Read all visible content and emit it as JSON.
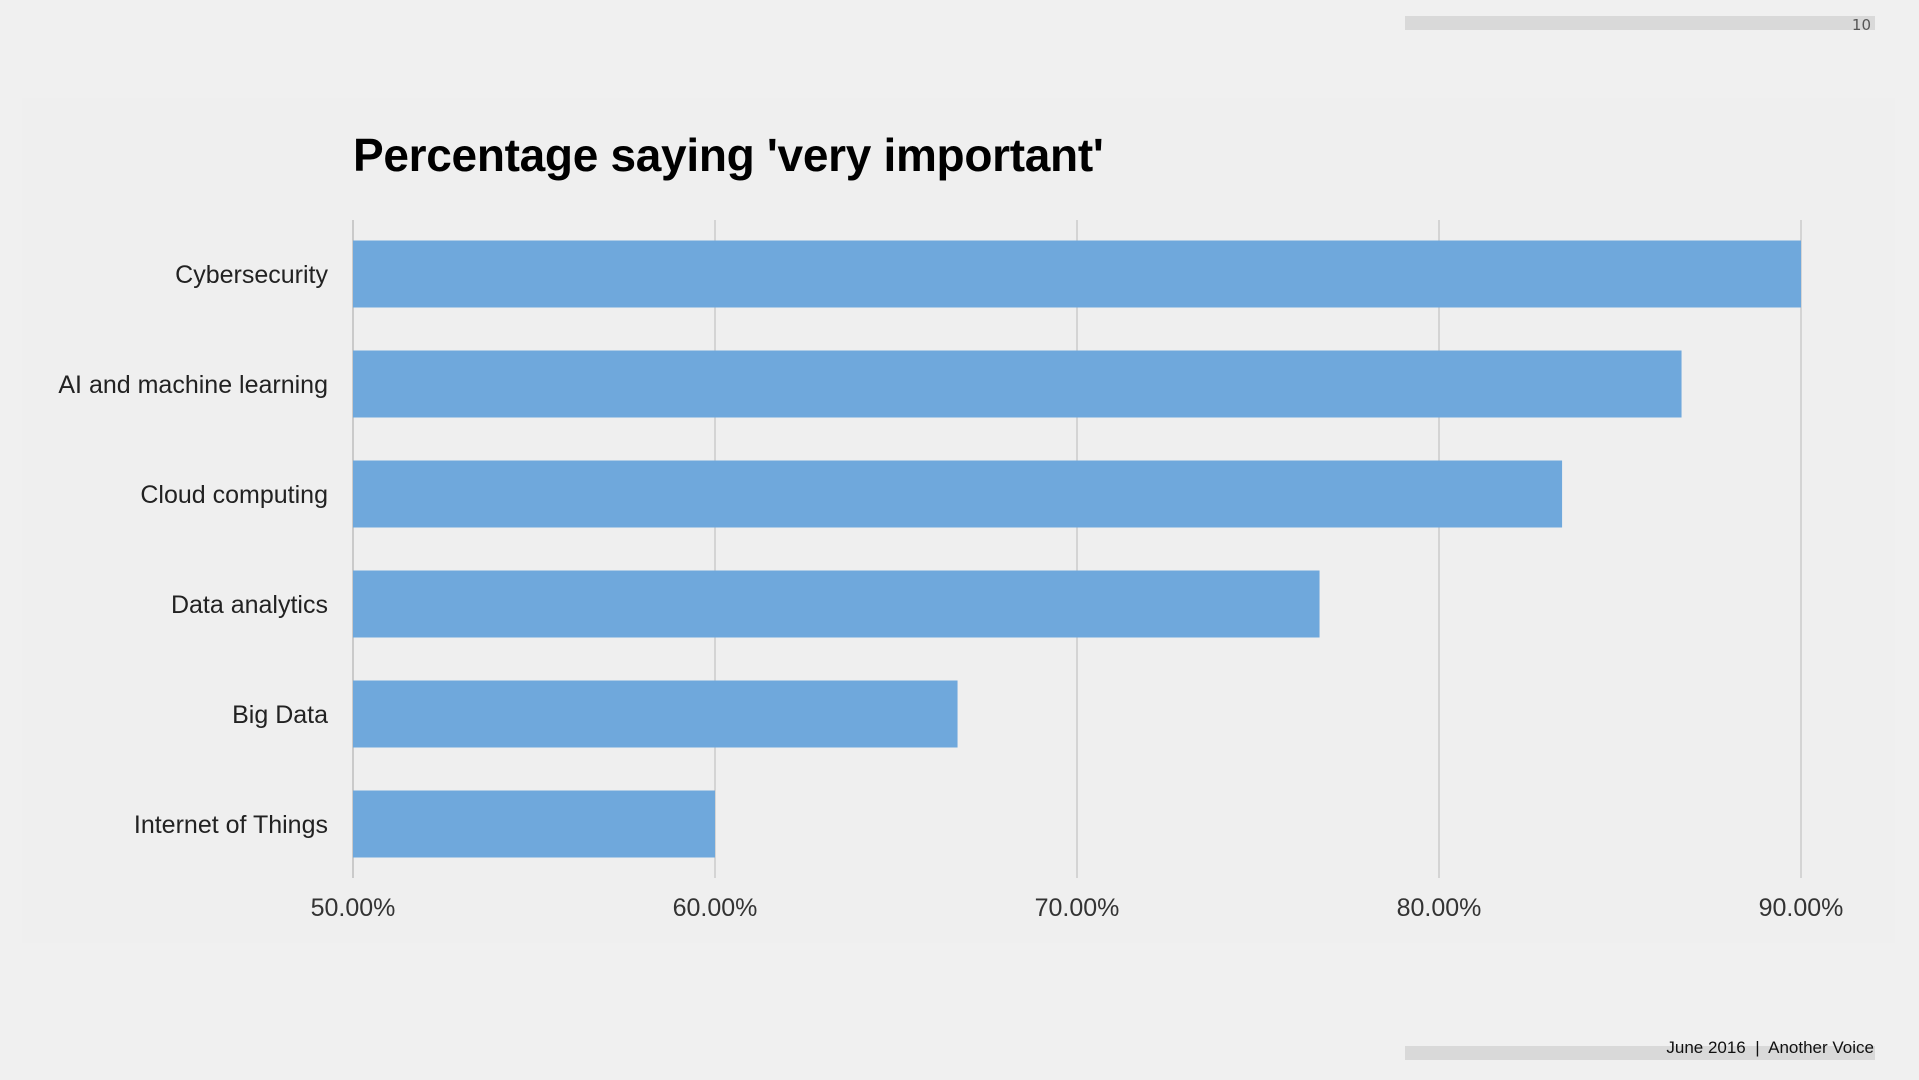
{
  "page": {
    "page_number": "10",
    "footer_text": "June 2016  |  Another Voice"
  },
  "colors": {
    "bar": "#6fa8dc",
    "grid": "#cccccc",
    "background": "#f0f0f0"
  },
  "chart_data": {
    "type": "bar",
    "orientation": "horizontal",
    "title": "Percentage saying 'very important'",
    "xlabel": "",
    "ylabel": "",
    "categories": [
      "Cybersecurity",
      "AI and machine learning",
      "Cloud computing",
      "Data analytics",
      "Big Data",
      "Internet of Things"
    ],
    "values": [
      90.0,
      86.7,
      83.4,
      76.7,
      66.7,
      60.0
    ],
    "xlim": [
      50,
      90
    ],
    "x_ticks": [
      50,
      60,
      70,
      80,
      90
    ],
    "x_tick_labels": [
      "50.00%",
      "60.00%",
      "70.00%",
      "80.00%",
      "90.00%"
    ],
    "grid": true,
    "legend": "none"
  }
}
